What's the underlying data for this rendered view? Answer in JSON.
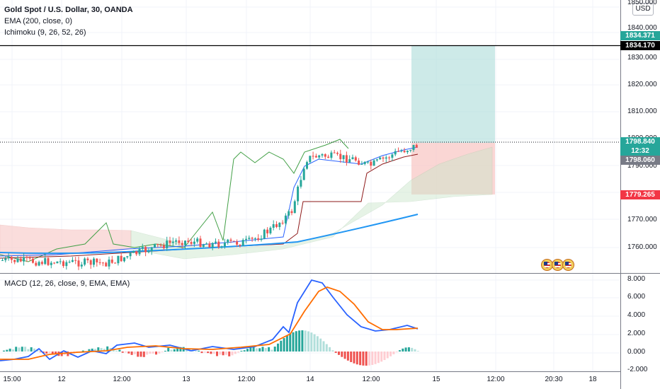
{
  "chart": {
    "title": "Gold Spot / U.S. Dollar, 30, OANDA",
    "indicators": [
      "EMA (200, close, 0)",
      "Ichimoku (9, 26, 52, 26)"
    ],
    "macd_label": "MACD (12, 26, close, 9, EMA, EMA)",
    "currency": "USD"
  },
  "price_axis": {
    "ticks": [
      "1850.000",
      "1840.000",
      "1830.000",
      "1820.000",
      "1810.000",
      "1800.000",
      "1790.000",
      "1770.000",
      "1760.000"
    ],
    "tags": [
      {
        "value": "1834.371",
        "color": "#26a69a"
      },
      {
        "value": "1834.170",
        "color": "#000000"
      },
      {
        "value": "1798.840",
        "color": "#26a69a"
      },
      {
        "value": "12:32",
        "color": "#26a69a"
      },
      {
        "value": "1798.060",
        "color": "#787b86"
      },
      {
        "value": "1779.265",
        "color": "#f23645"
      }
    ]
  },
  "macd_axis": {
    "ticks": [
      "8.000",
      "6.000",
      "4.000",
      "2.000",
      "0.000",
      "-2.000"
    ]
  },
  "time_axis": {
    "labels": [
      "15:00",
      "12",
      "12:00",
      "13",
      "12:00",
      "14",
      "12:00",
      "15",
      "12:00",
      "20:30",
      "18"
    ]
  },
  "colors": {
    "up": "#26a69a",
    "down": "#ef5350",
    "ema": "#2196f3",
    "macd": "#2962ff",
    "signal": "#ff6d00",
    "target_zone": "#b2dfdb",
    "stop_zone": "#f8c8c6"
  },
  "event_icons": [
    "us-flag-icon",
    "us-flag-icon",
    "us-flag-icon"
  ]
}
